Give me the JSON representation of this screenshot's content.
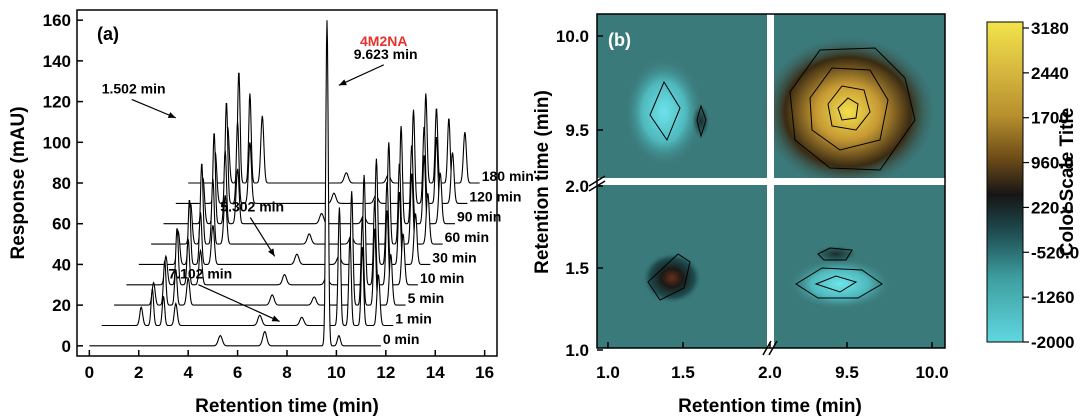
{
  "chart_data": [
    {
      "type": "line",
      "panel_label": "(a)",
      "xlabel": "Retention time (min)",
      "ylabel": "Response (mAU)",
      "xlim": [
        -0.5,
        16.5
      ],
      "ylim": [
        -5,
        165
      ],
      "x_ticks": [
        0,
        2,
        4,
        6,
        8,
        10,
        12,
        14,
        16
      ],
      "y_ticks": [
        0,
        20,
        40,
        60,
        80,
        100,
        120,
        140,
        160
      ],
      "highlight_label": "4M2NA",
      "highlight_color": "#e8312a",
      "series": [
        {
          "name": "0 min",
          "x_offset": 0.0,
          "y_offset": 0
        },
        {
          "name": "1 min",
          "x_offset": 0.5,
          "y_offset": 10
        },
        {
          "name": "5 min",
          "x_offset": 1.0,
          "y_offset": 20
        },
        {
          "name": "10 min",
          "x_offset": 1.5,
          "y_offset": 30
        },
        {
          "name": "30 min",
          "x_offset": 2.0,
          "y_offset": 40
        },
        {
          "name": "60 min",
          "x_offset": 2.5,
          "y_offset": 50
        },
        {
          "name": "90 min",
          "x_offset": 3.0,
          "y_offset": 60
        },
        {
          "name": "120 min",
          "x_offset": 3.5,
          "y_offset": 70
        },
        {
          "name": "180 min",
          "x_offset": 4.0,
          "y_offset": 80
        }
      ],
      "annotations": [
        {
          "text": "1.502 min",
          "x": 0.5,
          "y": 124,
          "arrow_to": [
            3.5,
            112
          ]
        },
        {
          "text": "9.623 min",
          "x": 10.7,
          "y": 141,
          "arrow_to": [
            10.1,
            128
          ]
        },
        {
          "text": "5.302 min",
          "x": 5.3,
          "y": 66,
          "arrow_to": [
            7.5,
            44
          ]
        },
        {
          "text": "7.102 min",
          "x": 3.2,
          "y": 33,
          "arrow_to": [
            7.7,
            12
          ]
        }
      ]
    },
    {
      "type": "heatmap",
      "panel_label": "(b)",
      "xlabel": "Retention time (min)",
      "ylabel": "Retention time (min)",
      "x_ticks": [
        "1.0",
        "1.5",
        "2.0",
        "9.5",
        "10.0"
      ],
      "y_ticks": [
        "1.0",
        "1.5",
        "2.0",
        "9.5",
        "10.0"
      ],
      "colorbar_title": "Color Scale Title",
      "colorbar_ticks": [
        "3180",
        "2440",
        "1700",
        "960.0",
        "220.0",
        "-520.0",
        "-1260",
        "-2000"
      ],
      "colorbar_colors": [
        "#f2e44a",
        "#d9bb40",
        "#b8902e",
        "#7a561c",
        "#151515",
        "#20565a",
        "#3e9ea0",
        "#5fd7df"
      ],
      "background_color": "#3b7a7b",
      "blobs": [
        {
          "quadrant": "top-left",
          "cx": 1.38,
          "cy": 9.58,
          "value": -1700
        },
        {
          "quadrant": "top-left",
          "cx": 1.62,
          "cy": 9.56,
          "value": 600
        },
        {
          "quadrant": "top-right",
          "cx": 9.6,
          "cy": 9.6,
          "value": 3180
        },
        {
          "quadrant": "bottom-left",
          "cx": 1.42,
          "cy": 1.43,
          "value": 960
        },
        {
          "quadrant": "bottom-right",
          "cx": 9.6,
          "cy": 1.4,
          "value": -1500
        },
        {
          "quadrant": "bottom-right",
          "cx": 9.5,
          "cy": 1.62,
          "value": 500
        }
      ]
    }
  ]
}
